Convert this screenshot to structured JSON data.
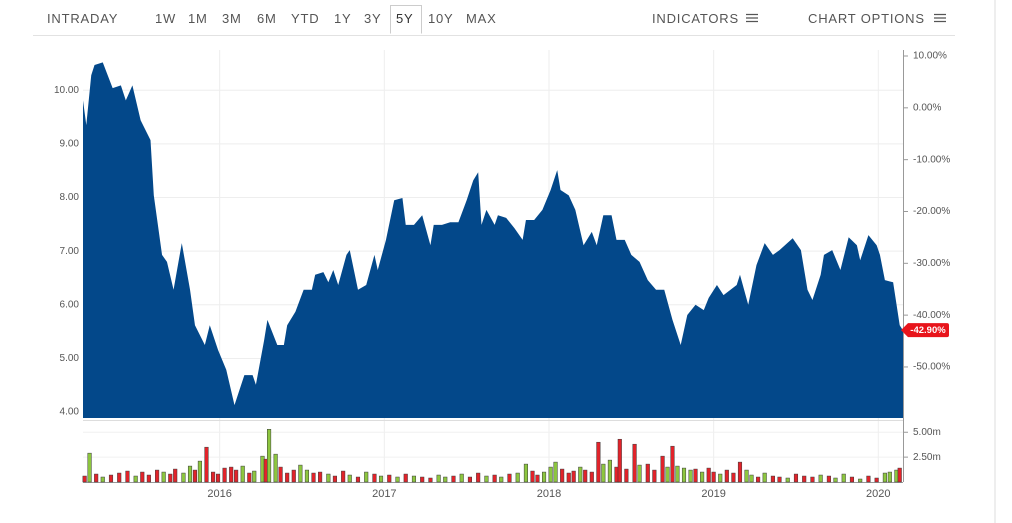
{
  "toolbar": {
    "intraday": "INTRADAY",
    "ranges": [
      "1W",
      "1M",
      "3M",
      "6M",
      "YTD",
      "1Y",
      "3Y",
      "5Y",
      "10Y",
      "MAX"
    ],
    "selected_range": "5Y",
    "indicators": "INDICATORS",
    "chart_options": "CHART OPTIONS"
  },
  "chart_data": [
    {
      "type": "area",
      "color": "#03488a",
      "grid": true,
      "xlim": [
        2015.17,
        2020.15
      ],
      "xticks": [
        2016,
        2017,
        2018,
        2019,
        2020
      ],
      "ylim": [
        3.89,
        10.75
      ],
      "yticks": [
        {
          "value": 4,
          "label": "4.00"
        },
        {
          "value": 5,
          "label": "5.00"
        },
        {
          "value": 6,
          "label": "6.00"
        },
        {
          "value": 7,
          "label": "7.00"
        },
        {
          "value": 8,
          "label": "8.00"
        },
        {
          "value": 9,
          "label": "9.00"
        },
        {
          "value": 10,
          "label": "10.00"
        }
      ],
      "y2lim": [
        -59.85,
        11.16
      ],
      "y2ticks": [
        {
          "value": 10,
          "label": "10.00%"
        },
        {
          "value": 0,
          "label": "0.00%"
        },
        {
          "value": -10,
          "label": "-10.00%"
        },
        {
          "value": -20,
          "label": "-20.00%"
        },
        {
          "value": -30,
          "label": "-30.00%"
        },
        {
          "value": -40,
          "label": "-40.00%"
        },
        {
          "value": -50,
          "label": "-50.00%"
        }
      ],
      "last_value": {
        "value": -42.9,
        "label": "-42.90%",
        "color": "#e8141b"
      },
      "x": [
        2015.17,
        2015.19,
        2015.22,
        2015.24,
        2015.29,
        2015.35,
        2015.4,
        2015.43,
        2015.47,
        2015.52,
        2015.58,
        2015.6,
        2015.65,
        2015.68,
        2015.72,
        2015.77,
        2015.82,
        2015.85,
        2015.91,
        2015.94,
        2015.99,
        2016.04,
        2016.09,
        2016.15,
        2016.2,
        2016.22,
        2016.27,
        2016.29,
        2016.35,
        2016.39,
        2016.41,
        2016.46,
        2016.51,
        2016.56,
        2016.58,
        2016.63,
        2016.66,
        2016.69,
        2016.72,
        2016.77,
        2016.79,
        2016.84,
        2016.89,
        2016.94,
        2016.96,
        2017.01,
        2017.06,
        2017.11,
        2017.13,
        2017.18,
        2017.23,
        2017.28,
        2017.3,
        2017.35,
        2017.4,
        2017.45,
        2017.5,
        2017.54,
        2017.57,
        2017.59,
        2017.62,
        2017.67,
        2017.69,
        2017.74,
        2017.79,
        2017.84,
        2017.86,
        2017.91,
        2017.96,
        2018.01,
        2018.05,
        2018.07,
        2018.12,
        2018.16,
        2018.21,
        2018.26,
        2018.29,
        2018.33,
        2018.38,
        2018.41,
        2018.46,
        2018.5,
        2018.55,
        2018.6,
        2018.65,
        2018.7,
        2018.75,
        2018.8,
        2018.84,
        2018.89,
        2018.94,
        2018.97,
        2019.02,
        2019.06,
        2019.14,
        2019.16,
        2019.21,
        2019.26,
        2019.31,
        2019.36,
        2019.4,
        2019.48,
        2019.53,
        2019.57,
        2019.6,
        2019.65,
        2019.67,
        2019.72,
        2019.77,
        2019.82,
        2019.87,
        2019.89,
        2019.94,
        2019.99,
        2020.01,
        2020.04,
        2020.09,
        2020.13,
        2020.15
      ],
      "values": [
        9.81,
        9.35,
        10.28,
        10.47,
        10.52,
        10.04,
        10.09,
        9.81,
        10.09,
        9.44,
        9.07,
        8.04,
        6.93,
        6.8,
        6.28,
        7.15,
        6.28,
        5.62,
        5.25,
        5.62,
        5.16,
        4.79,
        4.13,
        4.69,
        4.69,
        4.51,
        5.34,
        5.72,
        5.25,
        5.25,
        5.62,
        5.87,
        6.28,
        6.28,
        6.56,
        6.61,
        6.42,
        6.65,
        6.37,
        6.93,
        7.02,
        6.28,
        6.37,
        6.93,
        6.65,
        7.21,
        7.95,
        7.99,
        7.49,
        7.49,
        7.67,
        7.11,
        7.49,
        7.49,
        7.54,
        7.54,
        7.95,
        8.32,
        8.47,
        7.49,
        7.77,
        7.49,
        7.67,
        7.62,
        7.43,
        7.21,
        7.58,
        7.58,
        7.77,
        8.14,
        8.51,
        8.14,
        8.04,
        7.77,
        7.11,
        7.36,
        7.11,
        7.67,
        7.67,
        7.21,
        7.21,
        6.93,
        6.8,
        6.46,
        6.28,
        6.28,
        5.72,
        5.25,
        5.81,
        6.0,
        5.9,
        6.13,
        6.37,
        6.18,
        6.37,
        6.56,
        6.0,
        6.74,
        7.15,
        6.93,
        7.02,
        7.24,
        7.02,
        6.28,
        6.09,
        6.56,
        6.93,
        7.02,
        6.65,
        7.26,
        7.11,
        6.83,
        7.3,
        7.11,
        6.93,
        6.46,
        6.42,
        5.62,
        5.52
      ]
    },
    {
      "type": "bar",
      "grid": true,
      "xlim": [
        2015.17,
        2020.15
      ],
      "ylim": [
        0,
        5.73
      ],
      "yticks": [
        {
          "value": 5,
          "label": "5.00m"
        },
        {
          "value": 2.5,
          "label": "2.50m"
        }
      ],
      "x": [
        2015.18,
        2015.21,
        2015.25,
        2015.29,
        2015.34,
        2015.39,
        2015.44,
        2015.49,
        2015.53,
        2015.57,
        2015.62,
        2015.66,
        2015.7,
        2015.73,
        2015.78,
        2015.82,
        2015.85,
        2015.88,
        2015.92,
        2015.96,
        2015.99,
        2016.03,
        2016.07,
        2016.1,
        2016.14,
        2016.18,
        2016.21,
        2016.26,
        2016.28,
        2016.3,
        2016.34,
        2016.37,
        2016.41,
        2016.45,
        2016.49,
        2016.53,
        2016.57,
        2016.61,
        2016.66,
        2016.7,
        2016.75,
        2016.79,
        2016.84,
        2016.89,
        2016.94,
        2016.98,
        2017.03,
        2017.08,
        2017.13,
        2017.18,
        2017.23,
        2017.28,
        2017.33,
        2017.37,
        2017.42,
        2017.47,
        2017.52,
        2017.57,
        2017.62,
        2017.67,
        2017.71,
        2017.76,
        2017.81,
        2017.86,
        2017.9,
        2017.93,
        2017.97,
        2018.01,
        2018.04,
        2018.08,
        2018.12,
        2018.15,
        2018.19,
        2018.22,
        2018.26,
        2018.3,
        2018.33,
        2018.37,
        2018.41,
        2018.43,
        2018.47,
        2018.52,
        2018.55,
        2018.6,
        2018.64,
        2018.69,
        2018.72,
        2018.75,
        2018.78,
        2018.82,
        2018.86,
        2018.89,
        2018.93,
        2018.97,
        2019.0,
        2019.04,
        2019.08,
        2019.12,
        2019.16,
        2019.2,
        2019.23,
        2019.27,
        2019.31,
        2019.36,
        2019.4,
        2019.45,
        2019.5,
        2019.55,
        2019.6,
        2019.65,
        2019.7,
        2019.74,
        2019.79,
        2019.84,
        2019.89,
        2019.94,
        2019.99,
        2020.04,
        2020.07,
        2020.11,
        2020.13
      ],
      "values": [
        0.6,
        2.9,
        0.8,
        0.5,
        0.7,
        0.9,
        1.1,
        0.6,
        1.0,
        0.7,
        1.2,
        1.0,
        0.8,
        1.3,
        0.9,
        1.6,
        1.2,
        2.1,
        3.5,
        1.0,
        0.8,
        1.4,
        1.5,
        1.2,
        1.6,
        0.9,
        1.1,
        2.6,
        2.3,
        5.3,
        2.8,
        1.5,
        0.9,
        1.2,
        1.7,
        1.2,
        0.9,
        1.0,
        0.8,
        0.6,
        1.1,
        0.7,
        0.5,
        1.0,
        0.8,
        0.6,
        0.7,
        0.5,
        0.8,
        0.6,
        0.5,
        0.4,
        0.7,
        0.5,
        0.6,
        0.8,
        0.5,
        0.9,
        0.6,
        0.7,
        0.5,
        0.8,
        0.9,
        1.8,
        1.1,
        0.7,
        1.0,
        1.5,
        2.0,
        1.3,
        0.9,
        1.1,
        1.5,
        1.2,
        1.0,
        4.0,
        1.8,
        2.2,
        1.5,
        4.3,
        1.3,
        3.8,
        1.7,
        1.8,
        1.2,
        2.6,
        1.5,
        3.6,
        1.6,
        1.4,
        1.2,
        1.3,
        1.0,
        1.4,
        1.0,
        0.8,
        1.2,
        0.9,
        2.0,
        1.2,
        0.7,
        0.5,
        0.9,
        0.6,
        0.5,
        0.4,
        0.8,
        0.6,
        0.5,
        0.7,
        0.6,
        0.4,
        0.8,
        0.5,
        0.3,
        0.6,
        0.4,
        0.9,
        1.0,
        1.2,
        1.4
      ],
      "colors": [
        "#e2232a",
        "#8dc63f",
        "#e2232a",
        "#8dc63f",
        "#e2232a",
        "#e2232a",
        "#e2232a",
        "#8dc63f",
        "#e2232a",
        "#e2232a",
        "#e2232a",
        "#8dc63f",
        "#e2232a",
        "#e2232a",
        "#8dc63f",
        "#8dc63f",
        "#e2232a",
        "#8dc63f",
        "#e2232a",
        "#e2232a",
        "#e2232a",
        "#e2232a",
        "#e2232a",
        "#e2232a",
        "#8dc63f",
        "#e2232a",
        "#8dc63f",
        "#8dc63f",
        "#e2232a",
        "#8dc63f",
        "#8dc63f",
        "#e2232a",
        "#e2232a",
        "#e2232a",
        "#8dc63f",
        "#8dc63f",
        "#e2232a",
        "#e2232a",
        "#8dc63f",
        "#e2232a",
        "#e2232a",
        "#8dc63f",
        "#e2232a",
        "#8dc63f",
        "#e2232a",
        "#8dc63f",
        "#e2232a",
        "#8dc63f",
        "#e2232a",
        "#8dc63f",
        "#e2232a",
        "#e2232a",
        "#8dc63f",
        "#8dc63f",
        "#e2232a",
        "#8dc63f",
        "#e2232a",
        "#e2232a",
        "#8dc63f",
        "#e2232a",
        "#8dc63f",
        "#e2232a",
        "#8dc63f",
        "#8dc63f",
        "#e2232a",
        "#e2232a",
        "#8dc63f",
        "#8dc63f",
        "#8dc63f",
        "#e2232a",
        "#e2232a",
        "#e2232a",
        "#8dc63f",
        "#e2232a",
        "#e2232a",
        "#e2232a",
        "#8dc63f",
        "#8dc63f",
        "#e2232a",
        "#e2232a",
        "#e2232a",
        "#e2232a",
        "#8dc63f",
        "#e2232a",
        "#e2232a",
        "#e2232a",
        "#8dc63f",
        "#e2232a",
        "#8dc63f",
        "#8dc63f",
        "#8dc63f",
        "#e2232a",
        "#8dc63f",
        "#e2232a",
        "#e2232a",
        "#8dc63f",
        "#e2232a",
        "#e2232a",
        "#e2232a",
        "#8dc63f",
        "#8dc63f",
        "#e2232a",
        "#8dc63f",
        "#e2232a",
        "#e2232a",
        "#8dc63f",
        "#e2232a",
        "#e2232a",
        "#e2232a",
        "#8dc63f",
        "#e2232a",
        "#8dc63f",
        "#8dc63f",
        "#e2232a",
        "#8dc63f",
        "#e2232a",
        "#e2232a",
        "#8dc63f",
        "#8dc63f",
        "#8dc63f",
        "#e2232a"
      ]
    }
  ]
}
